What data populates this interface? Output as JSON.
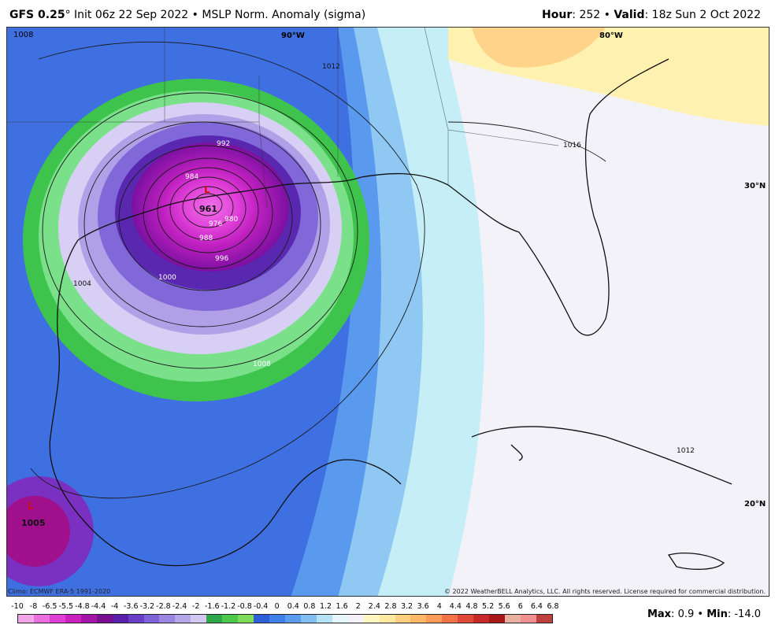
{
  "header": {
    "model": "GFS 0.25",
    "init": "Init 06z 22 Sep 2022",
    "product": "MSLP Norm. Anomaly (sigma)",
    "hour_label": "Hour",
    "hour": "252",
    "valid_label": "Valid",
    "valid": "18z Sun 2 Oct 2022"
  },
  "map_labels": {
    "lon_90": "90°W",
    "lon_80": "80°W",
    "lat_30": "30°N",
    "lat_20": "20°N",
    "low_center": "961",
    "low_2": "1005",
    "corner_1008": "1008"
  },
  "isobars": [
    "992",
    "984",
    "976",
    "980",
    "988",
    "996",
    "1000",
    "1004",
    "1008",
    "1012",
    "1016",
    "1012"
  ],
  "credits": {
    "climo": "Climo: ECMWF ERA-5 1991-2020",
    "copyright": "© 2022 WeatherBELL Analytics, LLC. All rights reserved. License required for commercial distribution."
  },
  "colorbar": {
    "ticks": [
      "-10",
      "-8",
      "-6.5",
      "-5.5",
      "-4.8",
      "-4.4",
      "-4",
      "-3.6",
      "-3.2",
      "-2.8",
      "-2.4",
      "-2",
      "-1.6",
      "-1.2",
      "-0.8",
      "-0.4",
      "0",
      "0.4",
      "0.8",
      "1.2",
      "1.6",
      "2",
      "2.4",
      "2.8",
      "3.2",
      "3.6",
      "4",
      "4.4",
      "4.8",
      "5.2",
      "5.6",
      "6",
      "6.4",
      "6.8"
    ],
    "colors": [
      "#f2a6e8",
      "#ea6fe0",
      "#e03fd4",
      "#cc1fbf",
      "#a414a6",
      "#7a0f90",
      "#5a1fa8",
      "#6a3fc8",
      "#7e62d8",
      "#9a86e0",
      "#b5a8ea",
      "#d2c8f2",
      "#2fa84a",
      "#4cc84c",
      "#7edc5a",
      "#2e5fd8",
      "#3f7fe8",
      "#5c9cf0",
      "#84bff4",
      "#b6e3f6",
      "#e4f6fa",
      "#f4f2f8",
      "#fff6c0",
      "#ffe8a0",
      "#ffd080",
      "#ffb868",
      "#ff9a58",
      "#f47248",
      "#e04838",
      "#c82828",
      "#a81818",
      "#e8b0a0",
      "#f09090",
      "#c04040"
    ]
  },
  "maxmin": {
    "max_label": "Max",
    "max": "0.9",
    "min_label": "Min",
    "min": "-14.0"
  }
}
